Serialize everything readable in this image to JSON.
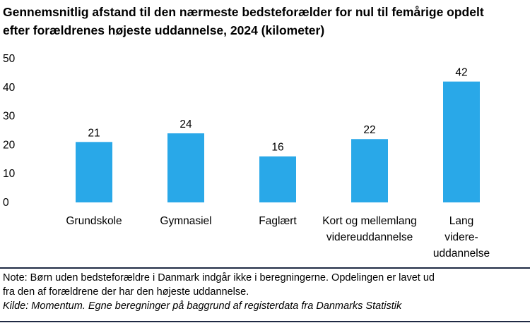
{
  "title_lines": [
    "Gennemsnitlig afstand til den nærmeste bedsteforælder for nul til femårige opdelt",
    "efter forældrenes højeste uddannelse, 2024 (kilometer)"
  ],
  "chart_data": {
    "type": "bar",
    "title": "Gennemsnitlig afstand til den nærmeste bedsteforælder for nul til femårige opdelt efter forældrenes højeste uddannelse, 2024 (kilometer)",
    "categories": [
      "Grundskole",
      "Gymnasiel",
      "Faglært",
      "Kort og mellemlang videreuddannelse",
      "Lang videre-uddannelse"
    ],
    "category_lines": [
      [
        "Grundskole"
      ],
      [
        "Gymnasiel"
      ],
      [
        "Faglært"
      ],
      [
        "Kort og mellemlang",
        "videreuddannelse"
      ],
      [
        "Lang",
        "videre-",
        "uddannelse"
      ]
    ],
    "values": [
      21,
      24,
      16,
      22,
      42
    ],
    "ylim": [
      0,
      50
    ],
    "yticks": [
      0,
      10,
      20,
      30,
      40,
      50
    ],
    "grid": false,
    "bar_color": "#29a8e8",
    "xlabel": "",
    "ylabel": ""
  },
  "notes": {
    "note_lines": [
      "Note: Børn uden bedsteforældre i Danmark indgår ikke i beregningerne. Opdelingen er lavet ud",
      "fra den af forældrene der har den højeste uddannelse."
    ],
    "source": "Kilde: Momentum. Egne beregninger på baggrund af registerdata fra Danmarks Statistik"
  }
}
